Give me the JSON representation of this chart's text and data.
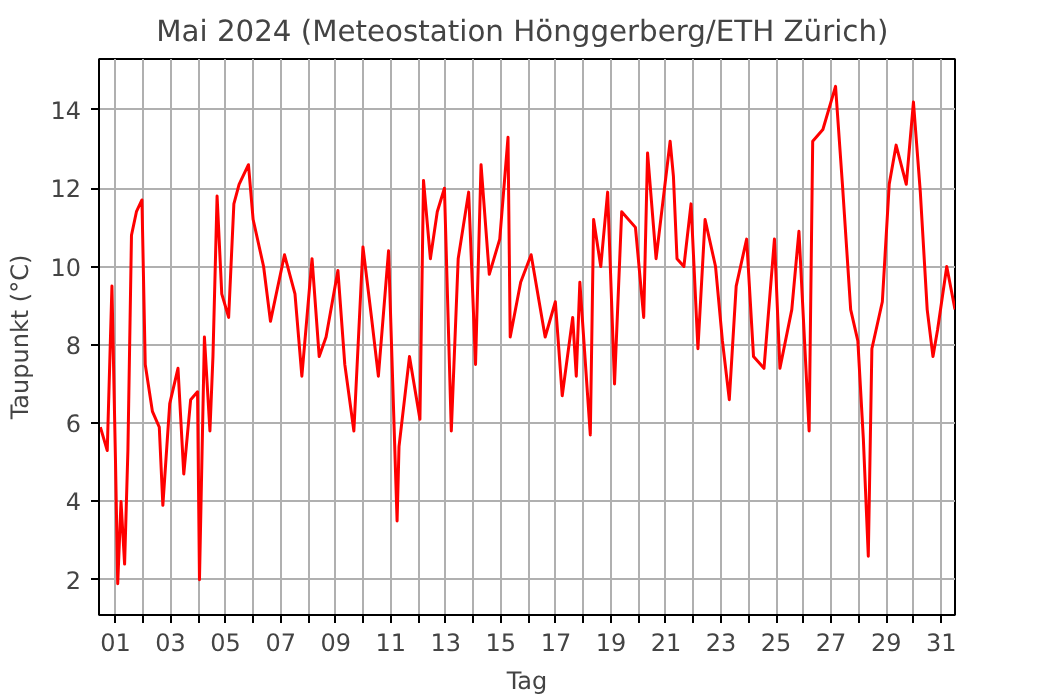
{
  "chart_data": {
    "type": "line",
    "title": "Mai 2024  (Meteostation Hönggerberg/ETH Zürich)",
    "xlabel": "Tag",
    "ylabel": "Taupunkt (°C)",
    "xlim": [
      0.4,
      31.5
    ],
    "ylim": [
      1.1,
      15.3
    ],
    "xticks": [
      {
        "value": 1,
        "label": "01"
      },
      {
        "value": 2,
        "label": null
      },
      {
        "value": 3,
        "label": "03"
      },
      {
        "value": 4,
        "label": null
      },
      {
        "value": 5,
        "label": "05"
      },
      {
        "value": 6,
        "label": null
      },
      {
        "value": 7,
        "label": "07"
      },
      {
        "value": 8,
        "label": null
      },
      {
        "value": 9,
        "label": "09"
      },
      {
        "value": 10,
        "label": null
      },
      {
        "value": 11,
        "label": "11"
      },
      {
        "value": 12,
        "label": null
      },
      {
        "value": 13,
        "label": "13"
      },
      {
        "value": 14,
        "label": null
      },
      {
        "value": 15,
        "label": "15"
      },
      {
        "value": 16,
        "label": null
      },
      {
        "value": 17,
        "label": "17"
      },
      {
        "value": 18,
        "label": null
      },
      {
        "value": 19,
        "label": "19"
      },
      {
        "value": 20,
        "label": null
      },
      {
        "value": 21,
        "label": "21"
      },
      {
        "value": 22,
        "label": null
      },
      {
        "value": 23,
        "label": "23"
      },
      {
        "value": 24,
        "label": null
      },
      {
        "value": 25,
        "label": "25"
      },
      {
        "value": 26,
        "label": null
      },
      {
        "value": 27,
        "label": "27"
      },
      {
        "value": 28,
        "label": null
      },
      {
        "value": 29,
        "label": "29"
      },
      {
        "value": 30,
        "label": null
      },
      {
        "value": 31,
        "label": "31"
      }
    ],
    "yticks": [
      2,
      4,
      6,
      8,
      10,
      12,
      14
    ],
    "grid": true,
    "line_style": "solid",
    "marker": "none",
    "series": [
      {
        "color": "#ff0000",
        "x": [
          0.45,
          0.7,
          0.87,
          1.0,
          1.08,
          1.2,
          1.33,
          1.45,
          1.58,
          1.76,
          1.96,
          2.08,
          2.34,
          2.59,
          2.72,
          2.97,
          3.27,
          3.48,
          3.73,
          3.98,
          4.05,
          4.23,
          4.43,
          4.54,
          4.69,
          4.86,
          5.11,
          5.3,
          5.49,
          5.83,
          6.0,
          6.38,
          6.63,
          7.14,
          7.52,
          7.77,
          8.14,
          8.4,
          8.65,
          9.08,
          9.33,
          9.66,
          9.99,
          10.3,
          10.55,
          10.92,
          11.23,
          11.3,
          11.68,
          12.06,
          12.19,
          12.44,
          12.69,
          12.95,
          13.2,
          13.45,
          13.83,
          14.08,
          14.28,
          14.58,
          14.96,
          15.26,
          15.34,
          15.72,
          16.1,
          16.61,
          16.98,
          17.23,
          17.61,
          17.74,
          17.87,
          18.25,
          18.37,
          18.63,
          18.88,
          19.13,
          19.39,
          19.89,
          20.19,
          20.33,
          20.64,
          21.15,
          21.27,
          21.4,
          21.65,
          21.91,
          22.16,
          22.42,
          22.8,
          23.05,
          23.3,
          23.55,
          23.93,
          24.18,
          24.56,
          24.94,
          25.14,
          25.57,
          25.83,
          26.2,
          26.33,
          26.7,
          27.16,
          27.41,
          27.71,
          27.97,
          28.17,
          28.35,
          28.48,
          28.86,
          29.11,
          29.36,
          29.73,
          29.99,
          30.24,
          30.49,
          30.7,
          30.87,
          31.2,
          31.5
        ],
        "values": [
          5.9,
          5.3,
          9.5,
          5.0,
          1.9,
          4.0,
          2.4,
          5.3,
          10.8,
          11.4,
          11.7,
          7.5,
          6.3,
          5.9,
          3.9,
          6.5,
          7.4,
          4.7,
          6.6,
          6.8,
          2.0,
          8.2,
          5.8,
          7.7,
          11.8,
          9.3,
          8.7,
          11.6,
          12.1,
          12.6,
          11.2,
          10.0,
          8.6,
          10.3,
          9.3,
          7.2,
          10.2,
          7.7,
          8.2,
          9.9,
          7.5,
          5.8,
          10.5,
          8.7,
          7.2,
          10.4,
          3.5,
          5.4,
          7.7,
          6.1,
          12.2,
          10.2,
          11.4,
          12.0,
          5.8,
          10.2,
          11.9,
          7.5,
          12.6,
          9.8,
          10.7,
          13.3,
          8.2,
          9.6,
          10.3,
          8.2,
          9.1,
          6.7,
          8.7,
          7.2,
          9.6,
          5.7,
          11.2,
          10.0,
          11.9,
          7.0,
          11.4,
          11.0,
          8.7,
          12.9,
          10.2,
          13.2,
          12.3,
          10.2,
          10.0,
          11.6,
          7.9,
          11.2,
          10.0,
          8.1,
          6.6,
          9.5,
          10.7,
          7.7,
          7.4,
          10.7,
          7.4,
          8.9,
          10.9,
          5.8,
          13.2,
          13.5,
          14.6,
          12.1,
          8.9,
          8.1,
          5.6,
          2.6,
          7.9,
          9.1,
          12.1,
          13.1,
          12.1,
          14.2,
          11.9,
          8.9,
          7.7,
          8.4,
          10.0,
          8.9
        ]
      }
    ]
  }
}
